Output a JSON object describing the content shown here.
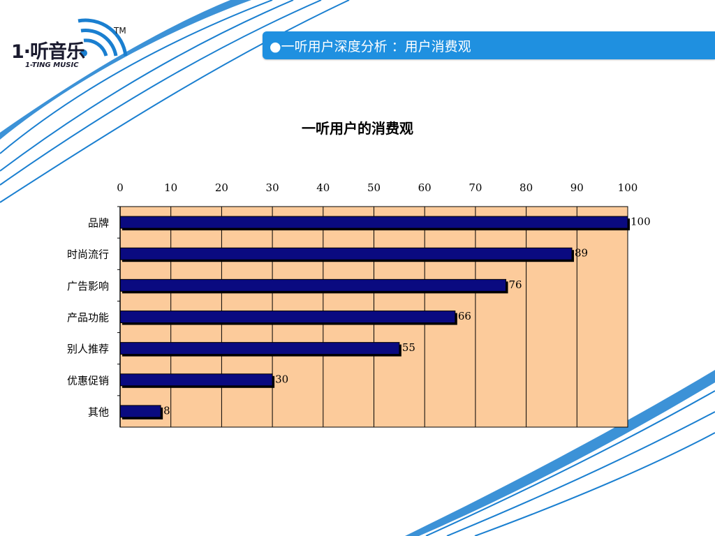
{
  "header": {
    "logo_text": "1·听音乐",
    "logo_sub": "1-TING MUSIC",
    "logo_tm": "TM",
    "banner_title": "●一听用户深度分析 ：用户消费观"
  },
  "colors": {
    "banner": "#1f90e0",
    "bar_fill": "#0a0a80",
    "plot_bg": "#fccb9b",
    "deco_blue": "#1a7fd0"
  },
  "chart_data": {
    "type": "bar",
    "orientation": "horizontal",
    "title": "一听用户的消费观",
    "categories": [
      "品牌",
      "时尚流行",
      "广告影响",
      "产品功能",
      "别人推荐",
      "优惠促销",
      "其他"
    ],
    "values": [
      100,
      89,
      76,
      66,
      55,
      30,
      8
    ],
    "value_labels": [
      "100",
      "89",
      "76",
      "66",
      "55",
      "30",
      "8"
    ],
    "xlim": [
      0,
      100
    ],
    "xticks": [
      "0",
      "10",
      "20",
      "30",
      "40",
      "50",
      "60",
      "70",
      "80",
      "90",
      "100"
    ],
    "x_axis_position": "top",
    "grid": true,
    "legend": "none"
  }
}
